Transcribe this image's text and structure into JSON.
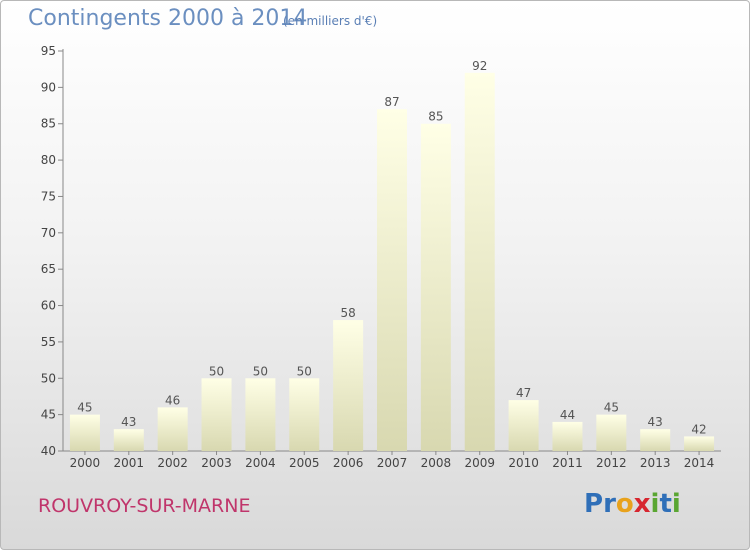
{
  "header": {
    "title": "Contingents 2000 à 2014",
    "subtitle": "(en milliers d'€)"
  },
  "footer": {
    "commune": "ROUVROY-SUR-MARNE",
    "logo": "Proxiti",
    "logo_letters": [
      {
        "ch": "P",
        "color": "#2f6fb8"
      },
      {
        "ch": "r",
        "color": "#2f6fb8"
      },
      {
        "ch": "o",
        "color": "#e8a21c"
      },
      {
        "ch": "x",
        "color": "#d7262f"
      },
      {
        "ch": "i",
        "color": "#5aa632"
      },
      {
        "ch": "t",
        "color": "#2f6fb8"
      },
      {
        "ch": "i",
        "color": "#5aa632"
      }
    ]
  },
  "chart_data": {
    "type": "bar",
    "title": "Contingents 2000 à 2014",
    "subtitle": "(en milliers d'€)",
    "xlabel": "",
    "ylabel": "",
    "categories": [
      "2000",
      "2001",
      "2002",
      "2003",
      "2004",
      "2005",
      "2006",
      "2007",
      "2008",
      "2009",
      "2010",
      "2011",
      "2012",
      "2013",
      "2014"
    ],
    "values": [
      45,
      43,
      46,
      50,
      50,
      50,
      58,
      87,
      85,
      92,
      47,
      44,
      45,
      43,
      42
    ],
    "ylim": [
      40,
      95
    ],
    "yticks": [
      40,
      45,
      50,
      55,
      60,
      65,
      70,
      75,
      80,
      85,
      90,
      95
    ],
    "grid": false,
    "legend": "none",
    "bar_color_top": "#ffffe6",
    "bar_color_bottom": "#d8d8b0"
  }
}
